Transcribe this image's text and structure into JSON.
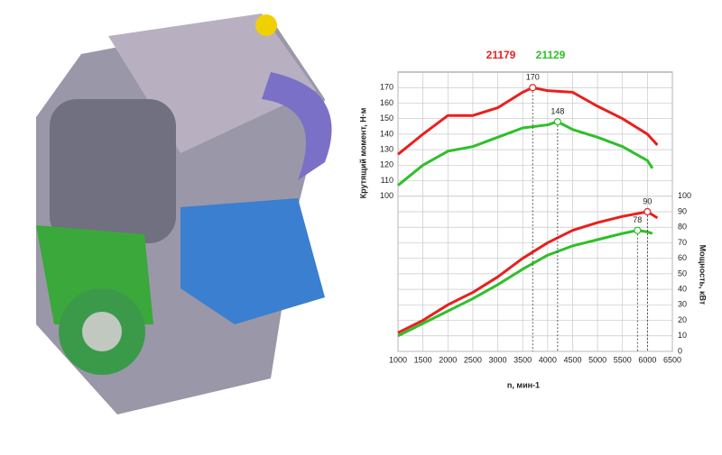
{
  "chart_data": {
    "type": "line",
    "x_label": "n, мин-1",
    "y_label": "Крутящий момент, Н·м",
    "y2_label": "Мощность, кВт",
    "xlim": [
      1000,
      6500
    ],
    "xticks": [
      1000,
      1500,
      2000,
      2500,
      3000,
      3500,
      4000,
      4500,
      5000,
      5500,
      6000,
      6500
    ],
    "ylim": [
      0,
      180
    ],
    "yticks": [
      100,
      110,
      120,
      130,
      140,
      150,
      160,
      170
    ],
    "y2lim": [
      0,
      180
    ],
    "y2ticks": [
      0,
      10,
      20,
      30,
      40,
      50,
      60,
      70,
      80,
      90,
      100
    ],
    "grid": true,
    "series": [
      {
        "name": "21179",
        "color": "#e8201e",
        "x": [
          1000,
          1500,
          2000,
          2500,
          3000,
          3500,
          3700,
          4000,
          4500,
          5000,
          5500,
          6000,
          6200
        ],
        "values": [
          127,
          140,
          152,
          152,
          157,
          167,
          170,
          168,
          167,
          158,
          150,
          140,
          133
        ]
      },
      {
        "name": "21129",
        "color": "#2fbf2a",
        "x": [
          1000,
          1500,
          2000,
          2500,
          3000,
          3500,
          4000,
          4200,
          4500,
          5000,
          5500,
          6000,
          6100
        ],
        "values": [
          107,
          120,
          129,
          132,
          138,
          144,
          146,
          148,
          143,
          138,
          132,
          123,
          118
        ]
      },
      {
        "axis": "y2",
        "color": "#e8201e",
        "x": [
          1000,
          1500,
          2000,
          2500,
          3000,
          3500,
          4000,
          4500,
          5000,
          5500,
          6000,
          6200
        ],
        "values": [
          12,
          20,
          30,
          38,
          48,
          60,
          70,
          78,
          83,
          87,
          90,
          86
        ]
      },
      {
        "axis": "y2",
        "color": "#2fbf2a",
        "x": [
          1000,
          1500,
          2000,
          2500,
          3000,
          3500,
          4000,
          4500,
          5000,
          5500,
          5800,
          6000,
          6100
        ],
        "values": [
          10,
          18,
          26,
          34,
          43,
          53,
          62,
          68,
          72,
          76,
          78,
          77,
          76
        ]
      }
    ],
    "annotations": [
      {
        "series": 0,
        "x": 3700,
        "value": 170
      },
      {
        "series": 1,
        "x": 4200,
        "value": 148
      },
      {
        "series": 2,
        "x": 6000,
        "value": 90
      },
      {
        "series": 3,
        "x": 5800,
        "value": 78
      }
    ]
  }
}
